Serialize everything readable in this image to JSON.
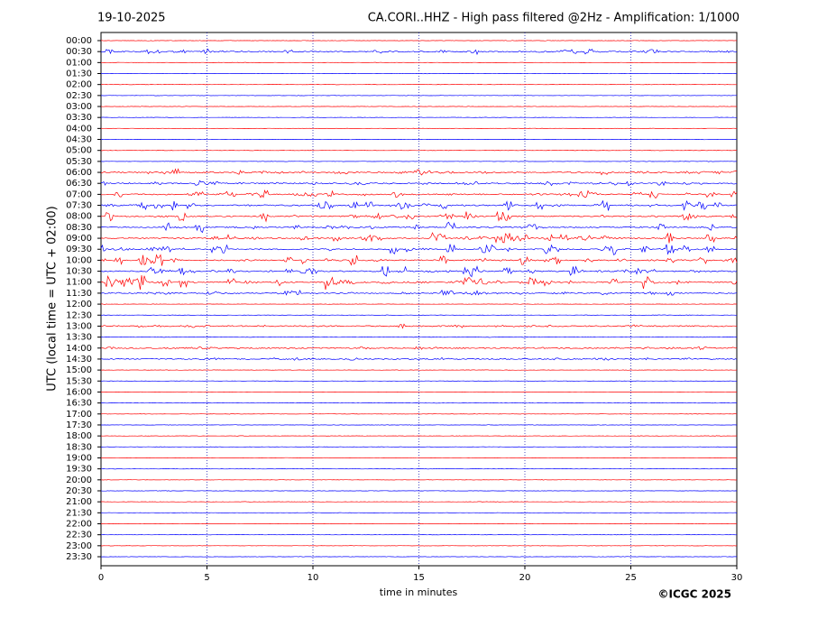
{
  "chart_data": {
    "type": "helicorder",
    "date": "19-10-2025",
    "title": "CA.CORI..HHZ - High pass filtered @2Hz - Amplification: 1/1000",
    "xlabel": "time in minutes",
    "ylabel": "UTC (local time = UTC + 02:00)",
    "credit": "©ICGC 2025",
    "xlim": [
      0,
      30
    ],
    "xticks": [
      0,
      5,
      10,
      15,
      20,
      25,
      30
    ],
    "grid": true,
    "colors": [
      "#ff0000",
      "#0000ff"
    ],
    "categories": [
      "00:00",
      "00:30",
      "01:00",
      "01:30",
      "02:00",
      "02:30",
      "03:00",
      "03:30",
      "04:00",
      "04:30",
      "05:00",
      "05:30",
      "06:00",
      "06:30",
      "07:00",
      "07:30",
      "08:00",
      "08:30",
      "09:00",
      "09:30",
      "10:00",
      "10:30",
      "11:00",
      "11:30",
      "12:00",
      "12:30",
      "13:00",
      "13:30",
      "14:00",
      "14:30",
      "15:00",
      "15:30",
      "16:00",
      "16:30",
      "17:00",
      "17:30",
      "18:00",
      "18:30",
      "19:00",
      "19:30",
      "20:00",
      "20:30",
      "21:00",
      "21:30",
      "22:00",
      "22:30",
      "23:00",
      "23:30"
    ],
    "values": [
      0.05,
      0.3,
      0.05,
      0.05,
      0.05,
      0.05,
      0.05,
      0.05,
      0.05,
      0.05,
      0.05,
      0.05,
      0.4,
      0.3,
      0.6,
      0.7,
      0.6,
      0.7,
      0.7,
      0.8,
      0.8,
      0.8,
      0.9,
      0.3,
      0.05,
      0.05,
      0.2,
      0.1,
      0.15,
      0.15,
      0.05,
      0.05,
      0.05,
      0.05,
      0.05,
      0.05,
      0.05,
      0.05,
      0.05,
      0.05,
      0.05,
      0.05,
      0.05,
      0.05,
      0.05,
      0.05,
      0.05,
      0.05
    ]
  }
}
